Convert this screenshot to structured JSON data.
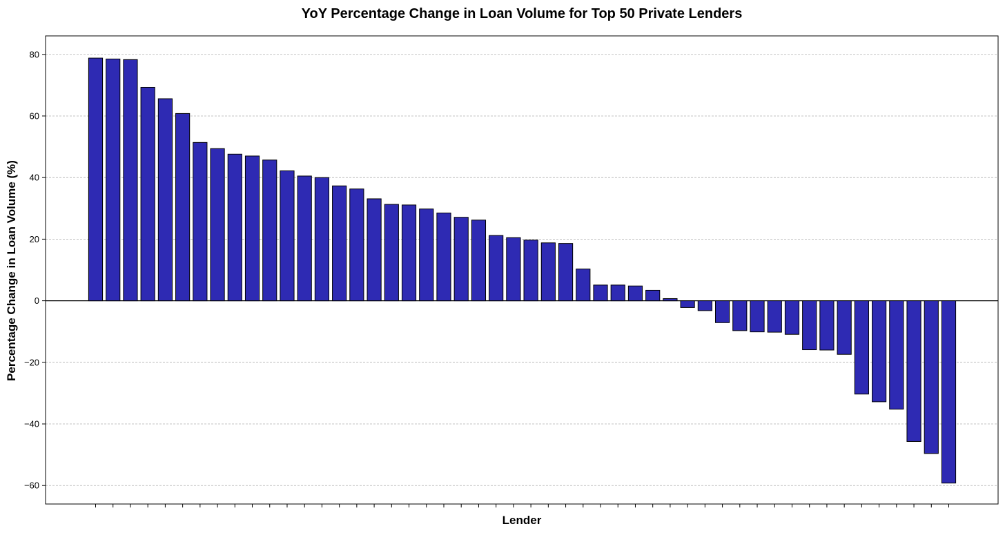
{
  "chart_data": {
    "type": "bar",
    "title": "YoY Percentage Change in Loan Volume for Top 50 Private Lenders",
    "xlabel": "Lender",
    "ylabel": "Percentage Change in Loan Volume (%)",
    "ylim": [
      -66,
      86
    ],
    "yticks": [
      -60,
      -40,
      -20,
      0,
      20,
      40,
      60,
      80
    ],
    "ytick_labels": [
      "−60",
      "−40",
      "−20",
      "0",
      "20",
      "40",
      "60",
      "80"
    ],
    "grid": "horizontal-dashed",
    "bar_color": "#2e2ab3",
    "bar_edge_color": "#000000",
    "values": [
      78.8,
      78.5,
      78.3,
      69.3,
      65.6,
      60.8,
      51.4,
      49.4,
      47.6,
      47.0,
      45.7,
      42.2,
      40.5,
      40.0,
      37.3,
      36.3,
      33.1,
      31.3,
      31.1,
      29.8,
      28.5,
      27.1,
      26.2,
      21.2,
      20.5,
      19.7,
      18.8,
      18.6,
      10.3,
      5.1,
      5.1,
      4.8,
      3.4,
      0.7,
      -2.2,
      -3.2,
      -7.1,
      -9.7,
      -10.1,
      -10.2,
      -10.9,
      -15.9,
      -16.0,
      -17.4,
      -30.3,
      -32.8,
      -35.2,
      -45.7,
      -49.6,
      -59.2
    ]
  }
}
